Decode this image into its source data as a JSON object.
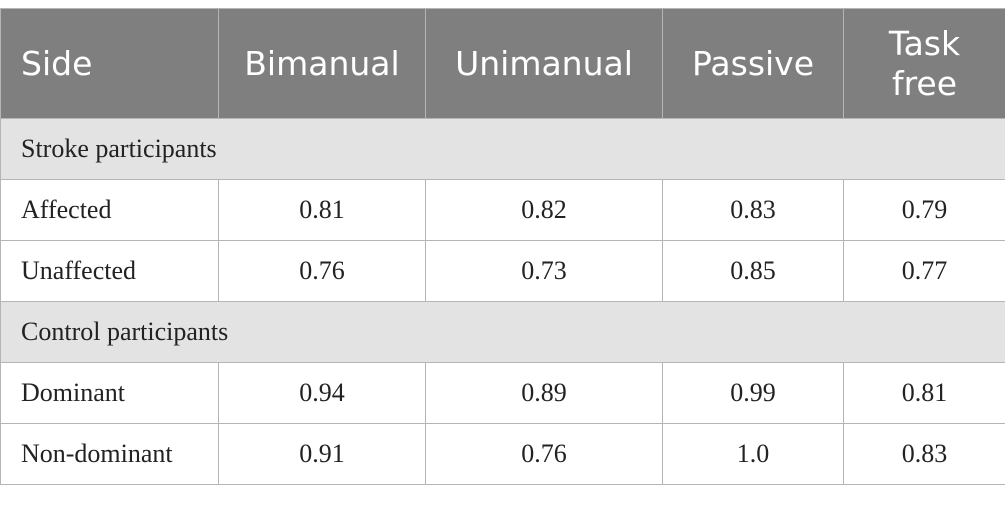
{
  "table": {
    "header": [
      "Side",
      "Bimanual",
      "Unimanual",
      "Passive",
      "Task free"
    ],
    "sections": [
      {
        "title": "Stroke participants",
        "rows": [
          [
            "Affected",
            "0.81",
            "0.82",
            "0.83",
            "0.79"
          ],
          [
            "Unaffected",
            "0.76",
            "0.73",
            "0.85",
            "0.77"
          ]
        ]
      },
      {
        "title": "Control participants",
        "rows": [
          [
            "Dominant",
            "0.94",
            "0.89",
            "0.99",
            "0.81"
          ],
          [
            "Non-dominant",
            "0.91",
            "0.76",
            "1.0",
            "0.83"
          ]
        ]
      }
    ]
  }
}
